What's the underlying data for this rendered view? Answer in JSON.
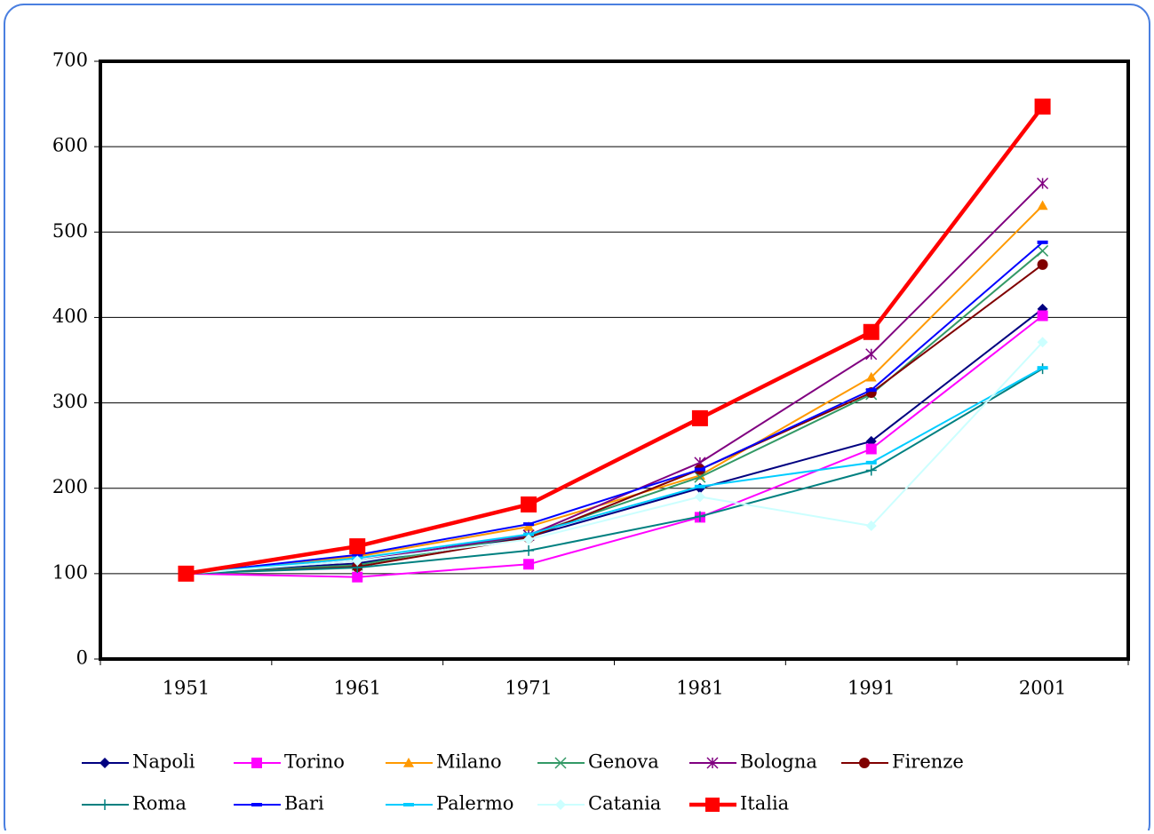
{
  "chart_data": {
    "type": "line",
    "categories": [
      "1951",
      "1961",
      "1971",
      "1981",
      "1991",
      "2001"
    ],
    "ylim": [
      0,
      700
    ],
    "yticks": [
      0,
      100,
      200,
      300,
      400,
      500,
      600,
      700
    ],
    "grid": true,
    "legend": "bottom",
    "series": [
      {
        "name": "Napoli",
        "color": "#000080",
        "marker": "diamond",
        "width": 2,
        "values": [
          100,
          112,
          143,
          200,
          255,
          410
        ]
      },
      {
        "name": "Torino",
        "color": "#ff00ff",
        "marker": "square",
        "width": 2,
        "values": [
          100,
          96,
          111,
          166,
          246,
          402
        ]
      },
      {
        "name": "Milano",
        "color": "#ff9900",
        "marker": "triangle",
        "width": 2,
        "values": [
          100,
          120,
          155,
          215,
          330,
          531
        ]
      },
      {
        "name": "Genova",
        "color": "#339966",
        "marker": "x",
        "width": 2,
        "values": [
          100,
          110,
          145,
          213,
          310,
          478
        ]
      },
      {
        "name": "Bologna",
        "color": "#800080",
        "marker": "star",
        "width": 2,
        "values": [
          100,
          115,
          145,
          230,
          357,
          557
        ]
      },
      {
        "name": "Firenze",
        "color": "#800000",
        "marker": "circle",
        "width": 2,
        "values": [
          100,
          108,
          142,
          222,
          312,
          462
        ]
      },
      {
        "name": "Roma",
        "color": "#008080",
        "marker": "plus",
        "width": 2,
        "values": [
          100,
          107,
          127,
          167,
          221,
          340
        ]
      },
      {
        "name": "Bari",
        "color": "#0000ff",
        "marker": "dash",
        "width": 2,
        "values": [
          100,
          122,
          158,
          222,
          315,
          488
        ]
      },
      {
        "name": "Palermo",
        "color": "#00ccff",
        "marker": "dash",
        "width": 2,
        "values": [
          100,
          118,
          146,
          202,
          230,
          341
        ]
      },
      {
        "name": "Catania",
        "color": "#ccffff",
        "marker": "diamond",
        "width": 2,
        "values": [
          100,
          115,
          140,
          190,
          156,
          371
        ]
      },
      {
        "name": "Italia",
        "color": "#ff0000",
        "marker": "square",
        "width": 4.5,
        "values": [
          100,
          132,
          181,
          282,
          383,
          647
        ]
      }
    ]
  }
}
